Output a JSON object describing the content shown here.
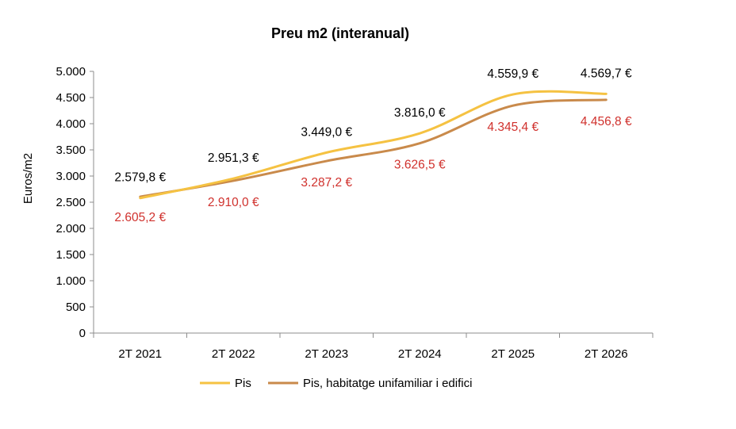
{
  "chart_data": {
    "type": "line",
    "title": "Preu m2 (interanual)",
    "xlabel": "",
    "ylabel": "Euros/m2",
    "categories": [
      "2T 2021",
      "2T 2022",
      "2T 2023",
      "2T 2024",
      "2T 2025",
      "2T 2026"
    ],
    "ylim": [
      0,
      5000
    ],
    "yticks": [
      0,
      500,
      1000,
      1500,
      2000,
      2500,
      3000,
      3500,
      4000,
      4500,
      5000
    ],
    "ytick_labels": [
      "0",
      "500",
      "1.000",
      "1.500",
      "2.000",
      "2.500",
      "3.000",
      "3.500",
      "4.000",
      "4.500",
      "5.000"
    ],
    "grid": false,
    "legend_position": "bottom",
    "series": [
      {
        "name": "Pis",
        "color": "#F5C242",
        "values": [
          2579.8,
          2951.3,
          3449.0,
          3816.0,
          4559.9,
          4569.7
        ],
        "labels": [
          "2.579,8 €",
          "2.951,3 €",
          "3.449,0 €",
          "3.816,0 €",
          "4.559,9 €",
          "4.569,7 €"
        ],
        "label_color": "#000000"
      },
      {
        "name": "Pis, habitatge unifamiliar i edifici",
        "color": "#C98A4B",
        "values": [
          2605.2,
          2910.0,
          3287.2,
          3626.5,
          4345.4,
          4456.8
        ],
        "labels": [
          "2.605,2 €",
          "2.910,0 €",
          "3.287,2 €",
          "3.626,5 €",
          "4.345,4 €",
          "4.456,8 €"
        ],
        "label_color": "#D0312D"
      }
    ]
  }
}
